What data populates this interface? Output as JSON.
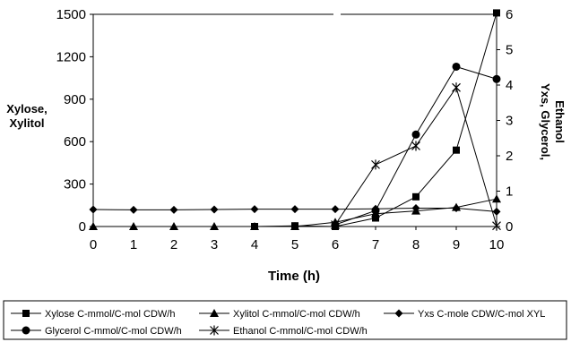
{
  "chart_data": {
    "type": "line",
    "xlabel": "Time (h)",
    "ylabel_left": [
      "Xylose,",
      "Xylitol"
    ],
    "ylabel_right": [
      "Yxs, Glycerol,",
      "Ethanol"
    ],
    "x": [
      0,
      1,
      2,
      3,
      4,
      5,
      6,
      7,
      8,
      9,
      10
    ],
    "xlim": [
      0,
      10
    ],
    "ylim_left": [
      0,
      1500
    ],
    "ylim_right": [
      0,
      6
    ],
    "yticks_left": [
      "0",
      "300",
      "600",
      "900",
      "1200",
      "1500"
    ],
    "yticks_right": [
      "0",
      "1",
      "2",
      "3",
      "4",
      "5",
      "6"
    ],
    "xticks": [
      "0",
      "1",
      "2",
      "3",
      "4",
      "5",
      "6",
      "7",
      "8",
      "9",
      "10"
    ],
    "grid": false,
    "legend_position": "bottom",
    "series": [
      {
        "name": "Xylose C-mmol/C-mol CDW/h",
        "axis": "left",
        "marker": "square",
        "x": [
          4,
          5,
          6,
          7,
          8,
          9,
          10
        ],
        "values": [
          0,
          5,
          0,
          60,
          210,
          540,
          1510
        ]
      },
      {
        "name": "Xylitol C-mmol/C-mol CDW/h",
        "axis": "left",
        "marker": "triangle",
        "x": [
          0,
          1,
          2,
          3,
          4,
          5,
          6,
          7,
          8,
          9,
          10
        ],
        "values": [
          0,
          0,
          0,
          0,
          0,
          0,
          30,
          90,
          110,
          135,
          195
        ]
      },
      {
        "name": "Yxs C-mole CDW/C-mol XYL",
        "axis": "right",
        "marker": "diamond",
        "x": [
          0,
          1,
          2,
          3,
          4,
          5,
          6,
          7,
          8,
          9,
          10
        ],
        "values": [
          0.48,
          0.47,
          0.47,
          0.48,
          0.49,
          0.49,
          0.49,
          0.5,
          0.52,
          0.52,
          0.42
        ]
      },
      {
        "name": "Glycerol C-mmol/C-mol CDW/h",
        "axis": "right",
        "marker": "circle",
        "x": [
          6,
          7,
          8,
          9,
          10
        ],
        "values": [
          0.05,
          0.45,
          2.6,
          4.52,
          4.17
        ]
      },
      {
        "name": "Ethanol C-mmol/C-mol CDW/h",
        "axis": "right",
        "marker": "star",
        "x": [
          6,
          7,
          8,
          9,
          10
        ],
        "values": [
          0.05,
          1.75,
          2.28,
          3.93,
          0.02
        ]
      }
    ]
  }
}
